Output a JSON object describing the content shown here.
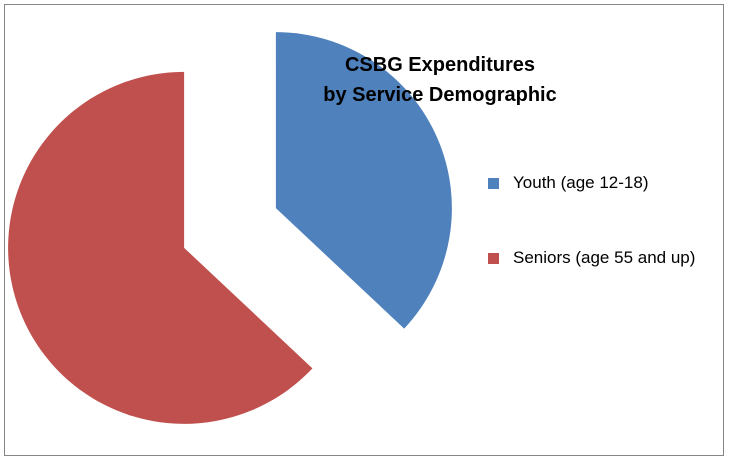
{
  "chart_data": {
    "type": "pie",
    "title_lines": [
      "CSBG Expenditures",
      "by Service Demographic"
    ],
    "slices": [
      {
        "label": "Youth (age 12-18)",
        "value": 37,
        "color": "#4F81BD"
      },
      {
        "label": "Seniors (age 55 and up)",
        "value": 63,
        "color": "#C0504D"
      }
    ],
    "exploded": true,
    "start_angle_deg": 0,
    "legend_position": "right"
  }
}
